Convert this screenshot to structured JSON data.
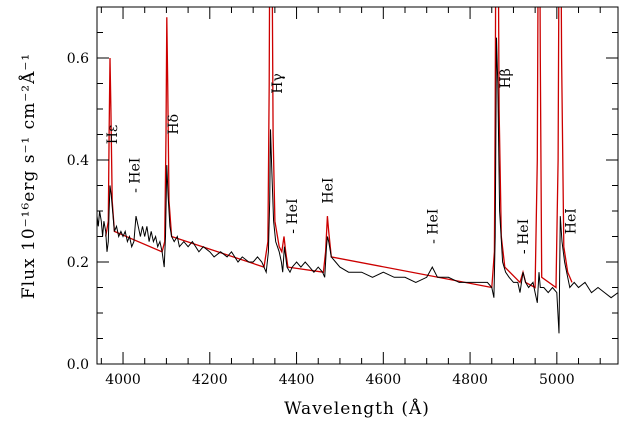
{
  "chart_data": {
    "type": "line",
    "title": "",
    "xlabel": "Wavelength (Å)",
    "ylabel": "Flux 10⁻¹⁶erg s⁻¹ cm⁻²Å⁻¹",
    "xlim": [
      3940,
      5141
    ],
    "ylim": [
      0,
      0.7
    ],
    "xticks": [
      4000,
      4200,
      4400,
      4600,
      4800,
      5000
    ],
    "xtick_labels": [
      "4000",
      "4200",
      "4400",
      "4600",
      "4800",
      "5000"
    ],
    "yticks": [
      0.0,
      0.2,
      0.4,
      0.6
    ],
    "ytick_labels": [
      "0.0",
      "0.2",
      "0.4",
      "0.6"
    ],
    "x_minor_step": 50,
    "y_minor_step": 0.05,
    "grid": false,
    "series": [
      {
        "color": "#cc0000",
        "points": [
          [
            3960,
            0.25
          ],
          [
            3966,
            0.28
          ],
          [
            3968,
            0.45
          ],
          [
            3970,
            0.6
          ],
          [
            3972,
            0.5
          ],
          [
            3975,
            0.32
          ],
          [
            3980,
            0.26
          ],
          [
            4090,
            0.22
          ],
          [
            4096,
            0.24
          ],
          [
            4099,
            0.45
          ],
          [
            4101,
            0.68
          ],
          [
            4103,
            0.55
          ],
          [
            4106,
            0.32
          ],
          [
            4112,
            0.25
          ],
          [
            4325,
            0.19
          ],
          [
            4334,
            0.24
          ],
          [
            4337,
            0.55
          ],
          [
            4340,
            1.2
          ],
          [
            4343,
            0.9
          ],
          [
            4346,
            0.45
          ],
          [
            4350,
            0.28
          ],
          [
            4360,
            0.23
          ],
          [
            4366,
            0.22
          ],
          [
            4371,
            0.25
          ],
          [
            4375,
            0.22
          ],
          [
            4380,
            0.19
          ],
          [
            4462,
            0.18
          ],
          [
            4467,
            0.22
          ],
          [
            4471,
            0.29
          ],
          [
            4474,
            0.26
          ],
          [
            4480,
            0.21
          ],
          [
            4850,
            0.15
          ],
          [
            4856,
            0.22
          ],
          [
            4858,
            0.5
          ],
          [
            4861,
            1.2
          ],
          [
            4864,
            1.0
          ],
          [
            4867,
            0.5
          ],
          [
            4872,
            0.25
          ],
          [
            4880,
            0.19
          ],
          [
            4915,
            0.16
          ],
          [
            4922,
            0.18
          ],
          [
            4928,
            0.16
          ],
          [
            4950,
            0.15
          ],
          [
            4955,
            0.4
          ],
          [
            4959,
            1.2
          ],
          [
            4962,
            0.6
          ],
          [
            4965,
            0.17
          ],
          [
            4998,
            0.15
          ],
          [
            5003,
            0.4
          ],
          [
            5007,
            1.2
          ],
          [
            5011,
            0.6
          ],
          [
            5016,
            0.23
          ],
          [
            5025,
            0.18
          ],
          [
            5035,
            0.16
          ]
        ]
      },
      {
        "color": "#000000",
        "points": [
          [
            3940,
            0.29
          ],
          [
            3943,
            0.27
          ],
          [
            3946,
            0.3
          ],
          [
            3950,
            0.28
          ],
          [
            3953,
            0.25
          ],
          [
            3956,
            0.28
          ],
          [
            3960,
            0.26
          ],
          [
            3963,
            0.22
          ],
          [
            3966,
            0.24
          ],
          [
            3968,
            0.3
          ],
          [
            3970,
            0.35
          ],
          [
            3973,
            0.33
          ],
          [
            3976,
            0.3
          ],
          [
            3980,
            0.26
          ],
          [
            3985,
            0.27
          ],
          [
            3990,
            0.25
          ],
          [
            3995,
            0.26
          ],
          [
            4000,
            0.25
          ],
          [
            4005,
            0.26
          ],
          [
            4010,
            0.24
          ],
          [
            4015,
            0.25
          ],
          [
            4020,
            0.23
          ],
          [
            4025,
            0.24
          ],
          [
            4030,
            0.29
          ],
          [
            4035,
            0.27
          ],
          [
            4040,
            0.25
          ],
          [
            4045,
            0.27
          ],
          [
            4050,
            0.25
          ],
          [
            4055,
            0.27
          ],
          [
            4060,
            0.24
          ],
          [
            4065,
            0.26
          ],
          [
            4070,
            0.24
          ],
          [
            4075,
            0.25
          ],
          [
            4080,
            0.23
          ],
          [
            4085,
            0.24
          ],
          [
            4090,
            0.22
          ],
          [
            4095,
            0.19
          ],
          [
            4098,
            0.25
          ],
          [
            4101,
            0.39
          ],
          [
            4104,
            0.33
          ],
          [
            4108,
            0.27
          ],
          [
            4112,
            0.25
          ],
          [
            4118,
            0.24
          ],
          [
            4125,
            0.25
          ],
          [
            4130,
            0.23
          ],
          [
            4140,
            0.24
          ],
          [
            4150,
            0.23
          ],
          [
            4160,
            0.24
          ],
          [
            4175,
            0.22
          ],
          [
            4185,
            0.23
          ],
          [
            4200,
            0.22
          ],
          [
            4210,
            0.21
          ],
          [
            4225,
            0.22
          ],
          [
            4240,
            0.21
          ],
          [
            4250,
            0.22
          ],
          [
            4265,
            0.2
          ],
          [
            4275,
            0.21
          ],
          [
            4290,
            0.2
          ],
          [
            4300,
            0.2
          ],
          [
            4310,
            0.21
          ],
          [
            4320,
            0.2
          ],
          [
            4330,
            0.18
          ],
          [
            4335,
            0.22
          ],
          [
            4338,
            0.32
          ],
          [
            4340,
            0.46
          ],
          [
            4343,
            0.38
          ],
          [
            4347,
            0.28
          ],
          [
            4352,
            0.24
          ],
          [
            4360,
            0.22
          ],
          [
            4365,
            0.2
          ],
          [
            4368,
            0.18
          ],
          [
            4372,
            0.23
          ],
          [
            4378,
            0.19
          ],
          [
            4385,
            0.18
          ],
          [
            4390,
            0.19
          ],
          [
            4400,
            0.2
          ],
          [
            4410,
            0.19
          ],
          [
            4420,
            0.2
          ],
          [
            4430,
            0.19
          ],
          [
            4440,
            0.18
          ],
          [
            4450,
            0.19
          ],
          [
            4460,
            0.18
          ],
          [
            4465,
            0.17
          ],
          [
            4469,
            0.23
          ],
          [
            4471,
            0.25
          ],
          [
            4474,
            0.24
          ],
          [
            4480,
            0.21
          ],
          [
            4490,
            0.2
          ],
          [
            4500,
            0.19
          ],
          [
            4520,
            0.18
          ],
          [
            4550,
            0.18
          ],
          [
            4575,
            0.17
          ],
          [
            4600,
            0.18
          ],
          [
            4625,
            0.17
          ],
          [
            4650,
            0.17
          ],
          [
            4675,
            0.16
          ],
          [
            4700,
            0.17
          ],
          [
            4713,
            0.19
          ],
          [
            4725,
            0.17
          ],
          [
            4750,
            0.17
          ],
          [
            4775,
            0.16
          ],
          [
            4800,
            0.16
          ],
          [
            4820,
            0.16
          ],
          [
            4840,
            0.16
          ],
          [
            4850,
            0.15
          ],
          [
            4855,
            0.13
          ],
          [
            4858,
            0.25
          ],
          [
            4861,
            0.64
          ],
          [
            4864,
            0.55
          ],
          [
            4868,
            0.3
          ],
          [
            4875,
            0.2
          ],
          [
            4882,
            0.18
          ],
          [
            4890,
            0.17
          ],
          [
            4900,
            0.16
          ],
          [
            4910,
            0.16
          ],
          [
            4915,
            0.14
          ],
          [
            4922,
            0.18
          ],
          [
            4928,
            0.16
          ],
          [
            4935,
            0.15
          ],
          [
            4945,
            0.16
          ],
          [
            4950,
            0.14
          ],
          [
            4955,
            0.12
          ],
          [
            4959,
            0.18
          ],
          [
            4962,
            0.15
          ],
          [
            4970,
            0.15
          ],
          [
            4980,
            0.14
          ],
          [
            4990,
            0.15
          ],
          [
            5000,
            0.14
          ],
          [
            5005,
            0.06
          ],
          [
            5008,
            0.29
          ],
          [
            5012,
            0.24
          ],
          [
            5018,
            0.2
          ],
          [
            5025,
            0.17
          ],
          [
            5030,
            0.15
          ],
          [
            5040,
            0.16
          ],
          [
            5050,
            0.15
          ],
          [
            5065,
            0.16
          ],
          [
            5080,
            0.14
          ],
          [
            5095,
            0.15
          ],
          [
            5110,
            0.14
          ],
          [
            5125,
            0.13
          ],
          [
            5141,
            0.14
          ]
        ]
      }
    ],
    "annotations": [
      {
        "text": "Hε",
        "wavelength": 3975,
        "flux": 0.45
      },
      {
        "text": "- HeI",
        "wavelength": 4026,
        "flux": 0.37
      },
      {
        "text": "Hδ",
        "wavelength": 4115,
        "flux": 0.47
      },
      {
        "text": "Hγ",
        "wavelength": 4355,
        "flux": 0.55
      },
      {
        "text": "- HeI",
        "wavelength": 4390,
        "flux": 0.29
      },
      {
        "text": "HeI",
        "wavelength": 4471,
        "flux": 0.34
      },
      {
        "text": "- HeI",
        "wavelength": 4713,
        "flux": 0.27
      },
      {
        "text": "Hβ",
        "wavelength": 4880,
        "flux": 0.56
      },
      {
        "text": "- HeI",
        "wavelength": 4922,
        "flux": 0.25
      },
      {
        "text": "HeI",
        "wavelength": 5032,
        "flux": 0.28
      }
    ]
  }
}
